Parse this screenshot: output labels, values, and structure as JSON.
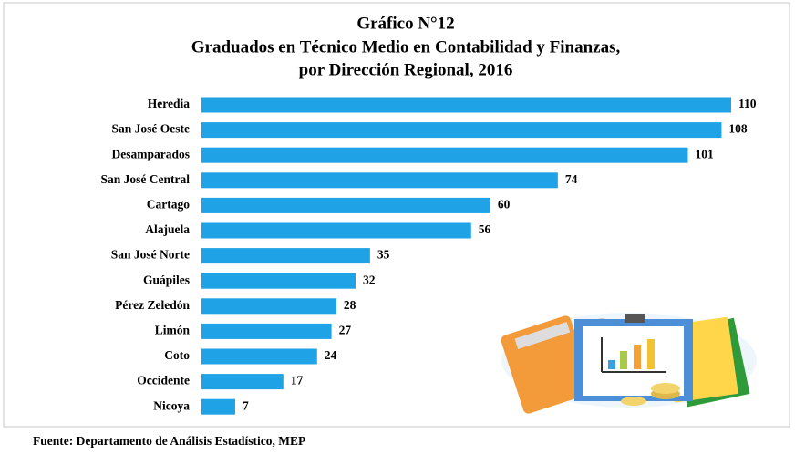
{
  "chart_data": {
    "type": "bar",
    "orientation": "horizontal",
    "title": [
      "Gráfico N°12",
      "Graduados en Técnico Medio en Contabilidad y Finanzas,",
      "por Dirección Regional, 2016"
    ],
    "categories": [
      "Heredia",
      "San José Oeste",
      "Desamparados",
      "San José Central",
      "Cartago",
      "Alajuela",
      "San José Norte",
      "Guápiles",
      "Pérez Zeledón",
      "Limón",
      "Coto",
      "Occidente",
      "Nicoya"
    ],
    "values": [
      110,
      108,
      101,
      74,
      60,
      56,
      35,
      32,
      28,
      27,
      24,
      17,
      7
    ],
    "color": "#1fa3e6",
    "source": "Fuente: Departamento de Análisis Estadístico, MEP"
  }
}
